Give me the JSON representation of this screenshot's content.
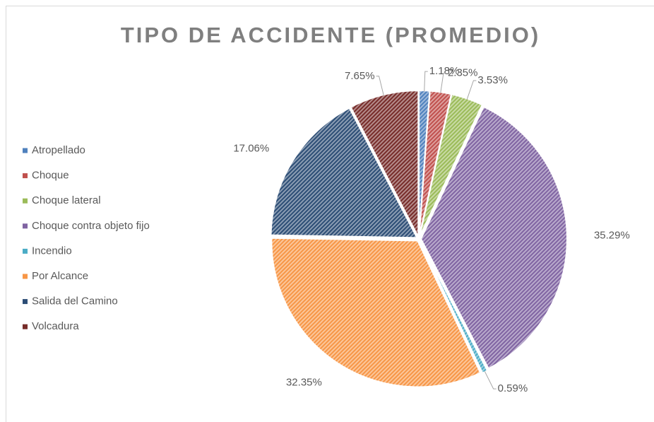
{
  "chart_data": {
    "type": "pie",
    "title": "TIPO DE ACCIDENTE (PROMEDIO)",
    "categories": [
      "Atropellado",
      "Choque",
      "Choque lateral",
      "Choque contra objeto fijo",
      "Incendio",
      "Por Alcance",
      "Salida del Camino",
      "Volcadura"
    ],
    "values": [
      1.18,
      2.35,
      3.53,
      35.29,
      0.59,
      32.35,
      17.06,
      7.65
    ],
    "value_labels": [
      "1.18%",
      "2.35%",
      "3.53%",
      "35.29%",
      "0.59%",
      "32.35%",
      "17.06%",
      "7.65%"
    ],
    "colors": [
      "#4f81bd",
      "#c0504d",
      "#9bbb59",
      "#8064a2",
      "#4bacc6",
      "#f79646",
      "#2c4d75",
      "#772c2a"
    ],
    "legend": "left"
  }
}
